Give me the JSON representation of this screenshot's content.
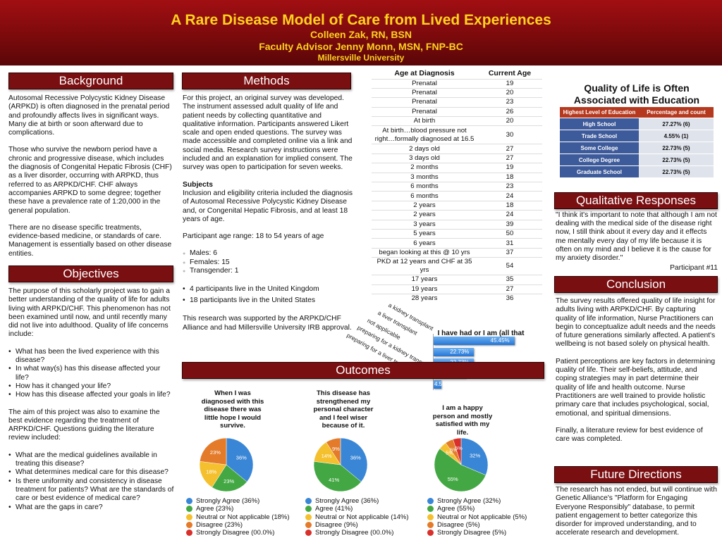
{
  "header": {
    "title": "A Rare Disease Model of Care from Lived Experiences",
    "author": "Colleen Zak, RN, BSN",
    "advisor": "Faculty Advisor Jenny Monn, MSN, FNP-BC",
    "institution": "Millersville University"
  },
  "background": {
    "heading": "Background",
    "p1": "Autosomal Recessive Polycystic Kidney Disease (ARPKD) is often diagnosed in the prenatal period and profoundly affects lives in significant ways.  Many die at birth or soon afterward due to complications.",
    "p2": "Those who survive the newborn period have a chronic and progressive disease, which includes the diagnosis of Congenital Hepatic Fibrosis (CHF) as a liver disorder, occurring with ARPKD, thus referred to as ARPKD/CHF. CHF always accompanies ARPKD to some degree; together these have a prevalence rate of 1:20,000 in the general population.",
    "p3": "There are no disease specific treatments, evidence-based medicine, or standards of care. Management is essentially based on other disease entities."
  },
  "objectives": {
    "heading": "Objectives",
    "p1": "The purpose of this scholarly project was to gain a better understanding of the quality of life for adults living with ARPKD/CHF.  This phenomenon has not been examined until now, and until recently many did not live into adulthood. Quality of life concerns include:",
    "list1": [
      "What has been the lived experience with this disease?",
      "In what way(s) has this disease affected your life?",
      "How has it changed your life?",
      "How has this disease affected your goals in life?"
    ],
    "p2": "The aim of this project was also to examine the best evidence regarding the treatment of ARPKD/CHF.  Questions guiding the literature review included:",
    "list2": [
      "What are the medical guidelines available in treating this disease?",
      "What determines medical care for this disease?",
      "Is there uniformity and consistency in disease treatment for patients?  What are the standards of care or best evidence of medical care?",
      "What are the gaps in care?"
    ]
  },
  "methods": {
    "heading": "Methods",
    "p1": "For this project, an original survey was developed. The instrument assessed adult quality of life and patient needs by collecting quantitative and qualitative information. Participants answered Likert scale and open ended questions. The survey was made accessible and completed online via a link and social media.  Research survey instructions were included and an explanation for implied consent.  The survey was open to participation for seven weeks.",
    "subjects_heading": "Subjects",
    "subjects_text": "Inclusion and eligibility criteria included the diagnosis of Autosomal Recessive Polycystic Kidney Disease and, or Congenital Hepatic Fibrosis, and at least 18 years of age.",
    "age_range": "Participant age range: 18 to 54 years of age",
    "gender": [
      "Males:  6",
      "Females:  15",
      "Transgender:  1"
    ],
    "locations": [
      "4 participants live in the United Kingdom",
      "18 participants live in the United States"
    ],
    "support": "This research was supported by the ARPKD/CHF Alliance and had Millersville University IRB approval."
  },
  "age_table": {
    "headers": [
      "Age at Diagnosis",
      "Current Age"
    ],
    "rows": [
      [
        "Prenatal",
        "19"
      ],
      [
        "Prenatal",
        "20"
      ],
      [
        "Prenatal",
        "23"
      ],
      [
        "Prenatal",
        "26"
      ],
      [
        "At birth",
        "20"
      ],
      [
        "At birth…blood pressure not right…formally diagnosed at 16.5",
        "30"
      ],
      [
        "2 days old",
        "27"
      ],
      [
        "3 days old",
        "27"
      ],
      [
        "2 months",
        "19"
      ],
      [
        "3 months",
        "18"
      ],
      [
        "6 months",
        "23"
      ],
      [
        "6 months",
        "24"
      ],
      [
        "2 years",
        "18"
      ],
      [
        "2 years",
        "24"
      ],
      [
        "3 years",
        "39"
      ],
      [
        "5 years",
        "50"
      ],
      [
        "6 years",
        "31"
      ],
      [
        "began looking at this @ 10 yrs",
        "37"
      ],
      [
        "PKD at 12 years and CHF at 35 yrs",
        "54"
      ],
      [
        "17 years",
        "35"
      ],
      [
        "19 years",
        "27"
      ],
      [
        "28 years",
        "36"
      ]
    ]
  },
  "education": {
    "title": "Quality of Life is Often Associated with Education",
    "headers": [
      "Highest Level of Education",
      "Percentage and count"
    ],
    "rows": [
      [
        "High School",
        "27.27% (6)"
      ],
      [
        "Trade School",
        "4.55% (1)"
      ],
      [
        "Some College",
        "22.73% (5)"
      ],
      [
        "College Degree",
        "22.73% (5)"
      ],
      [
        "Graduate School",
        "22.73% (5)"
      ]
    ]
  },
  "qualitative": {
    "heading": "Qualitative Responses",
    "quote": "\"I think it's important to note that although I am not dealing with the medical side of the disease right now, I still think about it every day and it effects me mentally every day of my life because it is often on my mind and I believe it is the cause for my anxiety disorder.\"",
    "attribution": "Participant #11"
  },
  "conclusion": {
    "heading": "Conclusion",
    "p1": "The survey results offered quality of life insight for adults living with ARPKD/CHF.  By capturing quality of life information, Nurse Practitioners can begin to conceptualize adult needs and the needs of future generations similarly affected.  A patient's wellbeing is not based solely on physical health.",
    "p2": "Patient perceptions are key factors in determining quality of life.  Their self-beliefs, attitude, and coping strategies may in part determine their quality of life and health outcome.  Nurse Practitioners are well trained to provide holistic primary care that includes psychological, social, emotional, and spiritual dimensions.",
    "p3": "Finally, a literature review for best evidence of care was completed."
  },
  "future": {
    "heading": "Future Directions",
    "p1": "The research has not ended, but will continue with Genetic Alliance's \"Platform for Engaging Everyone Responsibly\" database, to permit patient engagement to better categorize this disorder for improved understanding, and to accelerate research and development."
  },
  "outcomes": {
    "heading": "Outcomes"
  },
  "colors": {
    "banner": "#8b0d10",
    "header_bg": "#7a0f12",
    "title_yellow": "#ffd21f",
    "edu_header": "#b5391e",
    "edu_label": "#3d5a9a",
    "strongly_agree": "#3a86d6",
    "agree": "#43a843",
    "neutral": "#f5c02e",
    "disagree": "#e37b2a",
    "strongly_disagree": "#d9302b"
  },
  "chart_data": [
    {
      "type": "bar",
      "title": "I have had or I am (all that pertain included)",
      "categories": [
        "a kidney transplant",
        "a liver transplant",
        "not applicable",
        "preparing for a kidney transplant",
        "preparing for a liver transplant"
      ],
      "values": [
        45.45,
        22.73,
        22.73,
        18.18,
        4.55
      ],
      "labels": [
        "45.45%",
        "22.73%",
        "22.73%",
        "18.18%",
        "4.55%"
      ],
      "xlim": [
        0,
        50
      ]
    },
    {
      "type": "pie",
      "title": "When I was diagnosed with this disease there was little hope I would survive.",
      "categories": [
        "Strongly Agree (36%)",
        "Agree (23%)",
        "Neutral or Not applicable (18%)",
        "Disagree (23%)",
        "Strongly Disagree (00.0%)"
      ],
      "values": [
        36,
        23,
        18,
        23,
        0
      ],
      "labels": [
        "36%",
        "23%",
        "18%",
        "23%",
        ""
      ]
    },
    {
      "type": "pie",
      "title": "This disease has strengthened my personal character and I feel wiser because of it.",
      "categories": [
        "Strongly Agree (36%)",
        "Agree (41%)",
        "Neutral or Not applicable (14%)",
        "Disagree (9%)",
        "Strongly Disagree (00.0%)"
      ],
      "values": [
        36,
        41,
        14,
        9,
        0
      ],
      "labels": [
        "36%",
        "41%",
        "14%",
        "9%",
        ""
      ]
    },
    {
      "type": "pie",
      "title": "I am a happy person and mostly satisfied with my life.",
      "categories": [
        "Strongly Agree (32%)",
        "Agree (55%)",
        "Neutral or Not applicable (5%)",
        "Disagree (5%)",
        "Strongly Disagree (5%)"
      ],
      "values": [
        32,
        55,
        5,
        5,
        5
      ],
      "labels": [
        "32%",
        "55%",
        "5%",
        "5%",
        "5%"
      ]
    }
  ]
}
